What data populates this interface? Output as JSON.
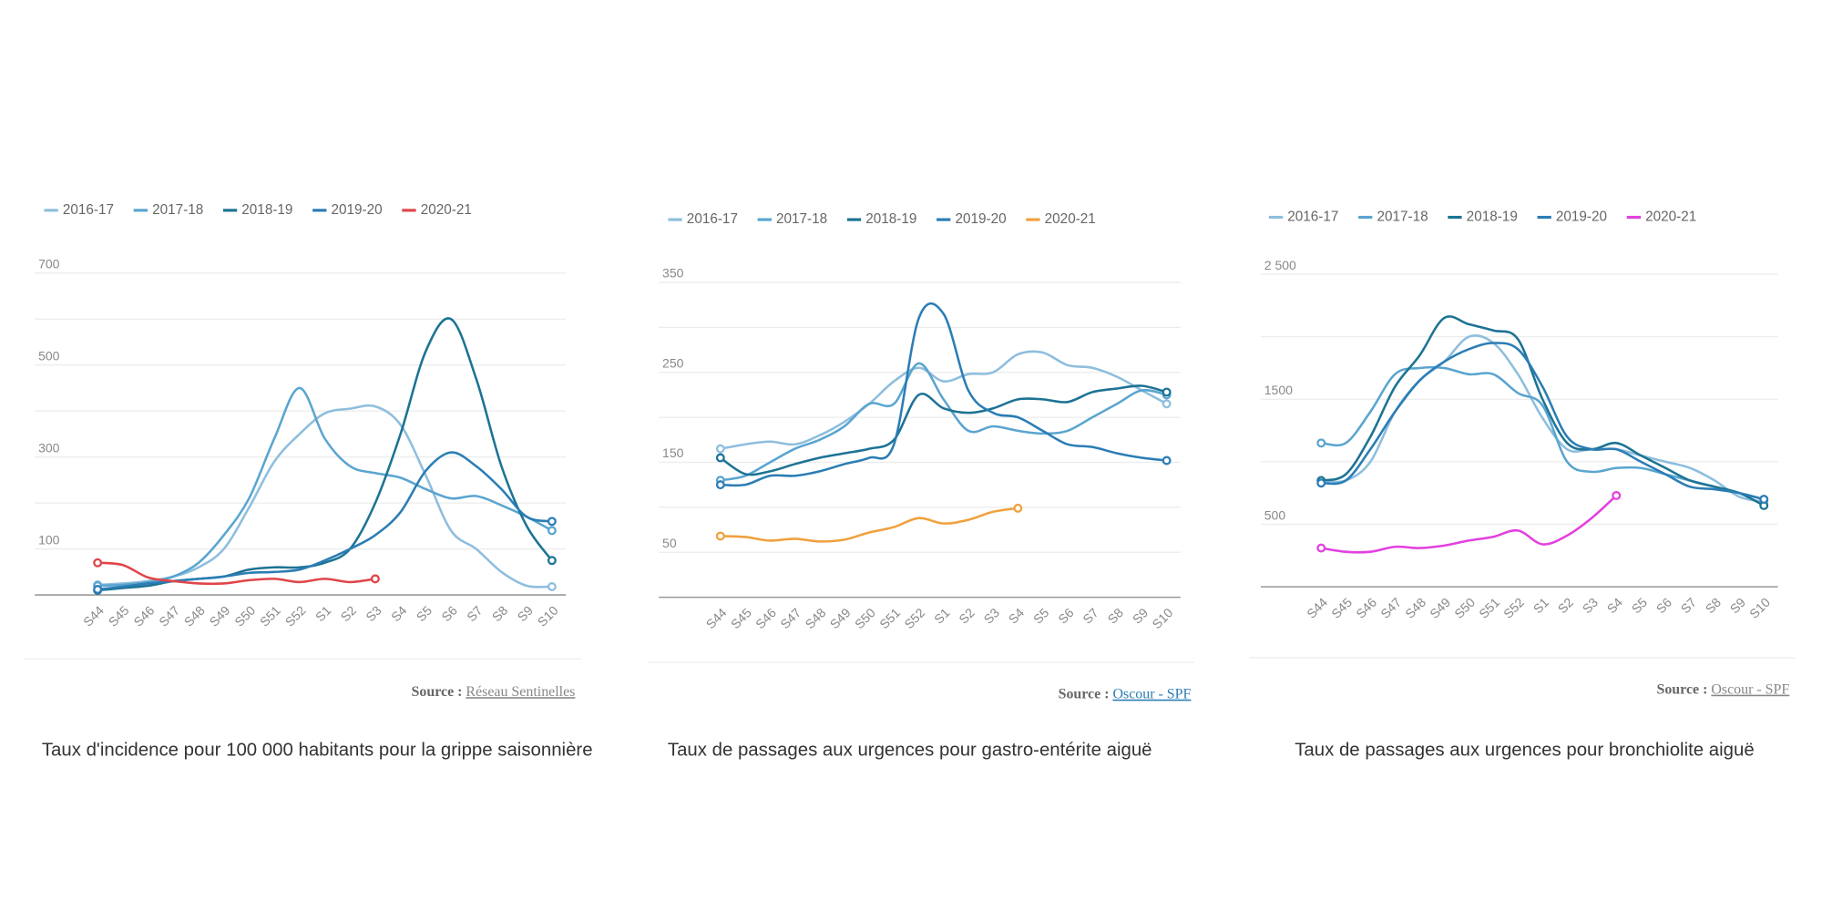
{
  "chart_data": [
    {
      "type": "line",
      "categories": [
        "S44",
        "S45",
        "S46",
        "S47",
        "S48",
        "S49",
        "S50",
        "S51",
        "S52",
        "S1",
        "S2",
        "S3",
        "S4",
        "S5",
        "S6",
        "S7",
        "S8",
        "S9",
        "S10"
      ],
      "ylim": [
        0,
        700
      ],
      "yticks": [
        100,
        300,
        500,
        700
      ],
      "minor_yticks": [
        0,
        200,
        400,
        600
      ],
      "grid": true,
      "legend": "top-left",
      "series": [
        {
          "name": "2016-17",
          "color": "#8ebedd",
          "values": [
            22,
            25,
            30,
            40,
            60,
            100,
            190,
            290,
            350,
            395,
            405,
            410,
            370,
            260,
            140,
            100,
            50,
            20,
            18
          ]
        },
        {
          "name": "2017-18",
          "color": "#5aa5d0",
          "values": [
            20,
            22,
            28,
            40,
            70,
            130,
            210,
            340,
            450,
            340,
            280,
            265,
            255,
            230,
            210,
            215,
            195,
            170,
            140
          ]
        },
        {
          "name": "2018-19",
          "color": "#1d7394",
          "values": [
            10,
            15,
            20,
            30,
            35,
            40,
            55,
            60,
            60,
            70,
            100,
            200,
            350,
            530,
            600,
            470,
            280,
            150,
            75
          ]
        },
        {
          "name": "2019-20",
          "color": "#2b7db5",
          "values": [
            12,
            18,
            25,
            30,
            35,
            40,
            48,
            50,
            55,
            75,
            100,
            130,
            180,
            270,
            310,
            280,
            230,
            170,
            160
          ]
        },
        {
          "name": "2020-21",
          "color": "#e0454a",
          "values": [
            70,
            65,
            38,
            30,
            25,
            25,
            32,
            35,
            28,
            35,
            28,
            35,
            null,
            null,
            null,
            null,
            null,
            null,
            null
          ]
        }
      ],
      "source_label": "Source :",
      "source": "Réseau Sentinelles",
      "caption": "Taux d'incidence pour 100 000 habitants pour la grippe saisonnière"
    },
    {
      "type": "line",
      "categories": [
        "S44",
        "S45",
        "S46",
        "S47",
        "S48",
        "S49",
        "S50",
        "S51",
        "S52",
        "S1",
        "S2",
        "S3",
        "S4",
        "S5",
        "S6",
        "S7",
        "S8",
        "S9",
        "S10"
      ],
      "ylim": [
        0,
        350
      ],
      "yticks": [
        50,
        150,
        250,
        350
      ],
      "minor_yticks": [
        0,
        100,
        200,
        300
      ],
      "grid": true,
      "legend": "top-left",
      "series": [
        {
          "name": "2016-17",
          "color": "#8ebedd",
          "values": [
            165,
            170,
            173,
            170,
            180,
            195,
            215,
            240,
            255,
            240,
            248,
            250,
            270,
            272,
            258,
            255,
            245,
            230,
            215
          ]
        },
        {
          "name": "2017-18",
          "color": "#5aa5d0",
          "values": [
            130,
            135,
            150,
            165,
            175,
            190,
            215,
            215,
            260,
            220,
            185,
            190,
            185,
            182,
            185,
            200,
            215,
            230,
            225
          ]
        },
        {
          "name": "2018-19",
          "color": "#1d7394",
          "values": [
            155,
            137,
            140,
            148,
            155,
            160,
            165,
            175,
            225,
            210,
            205,
            210,
            220,
            220,
            217,
            228,
            232,
            235,
            228
          ]
        },
        {
          "name": "2019-20",
          "color": "#2b7db5",
          "values": [
            125,
            125,
            135,
            135,
            140,
            148,
            155,
            170,
            310,
            315,
            230,
            205,
            200,
            185,
            170,
            167,
            160,
            155,
            152
          ]
        },
        {
          "name": "2020-21",
          "color": "#f0a13e",
          "values": [
            68,
            67,
            63,
            65,
            62,
            64,
            72,
            78,
            88,
            82,
            86,
            95,
            99,
            null,
            null,
            null,
            null,
            null,
            null
          ]
        }
      ],
      "source_label": "Source :",
      "source": "Oscour - SPF",
      "caption": "Taux de passages aux urgences pour gastro-entérite aiguë"
    },
    {
      "type": "line",
      "categories": [
        "S44",
        "S45",
        "S46",
        "S47",
        "S48",
        "S49",
        "S50",
        "S51",
        "S52",
        "S1",
        "S2",
        "S3",
        "S4",
        "S5",
        "S6",
        "S7",
        "S8",
        "S9",
        "S10"
      ],
      "ylim": [
        0,
        2500
      ],
      "yticks": [
        500,
        1500,
        {
          "value": 2500,
          "label": "2 500"
        }
      ],
      "minor_yticks": [
        0,
        1000,
        2000
      ],
      "grid": true,
      "legend": "top-left",
      "series": [
        {
          "name": "2016-17",
          "color": "#8ebedd",
          "values": [
            850,
            850,
            1000,
            1400,
            1650,
            1800,
            2000,
            1950,
            1700,
            1350,
            1100,
            1100,
            1100,
            1050,
            1000,
            950,
            850,
            720,
            680
          ]
        },
        {
          "name": "2017-18",
          "color": "#5aa5d0",
          "values": [
            1150,
            1150,
            1400,
            1700,
            1750,
            1750,
            1700,
            1700,
            1550,
            1450,
            1000,
            920,
            950,
            950,
            900,
            850,
            800,
            750,
            700
          ]
        },
        {
          "name": "2018-19",
          "color": "#1d7394",
          "values": [
            850,
            900,
            1200,
            1600,
            1850,
            2150,
            2100,
            2050,
            1980,
            1500,
            1150,
            1100,
            1150,
            1050,
            950,
            850,
            800,
            750,
            650
          ]
        },
        {
          "name": "2019-20",
          "color": "#2b7db5",
          "values": [
            830,
            850,
            1100,
            1400,
            1650,
            1800,
            1900,
            1950,
            1900,
            1600,
            1200,
            1100,
            1100,
            1000,
            900,
            800,
            780,
            750,
            700
          ]
        },
        {
          "name": "2020-21",
          "color": "#e340e0",
          "values": [
            310,
            280,
            280,
            320,
            310,
            330,
            370,
            400,
            450,
            340,
            410,
            550,
            730,
            null,
            null,
            null,
            null,
            null,
            null
          ]
        }
      ],
      "source_label": "Source :",
      "source": "Oscour - SPF",
      "caption": "Taux de passages aux urgences pour bronchiolite aiguë"
    }
  ]
}
